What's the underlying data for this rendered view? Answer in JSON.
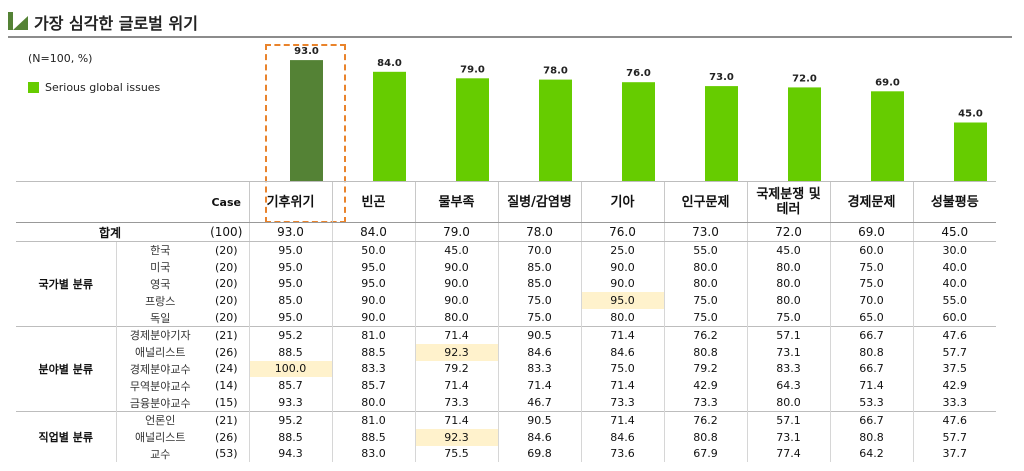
{
  "title": "가장 심각한 글로벌 위기",
  "note": "(N=100, %)",
  "colors": {
    "bar": "#66cc00",
    "highlight_bar": "#548235",
    "highlight_border": "#e9832b",
    "highlight_cell": "#fff2cc"
  },
  "chart_data": {
    "type": "bar",
    "categories": [
      "기후위기",
      "빈곤",
      "물부족",
      "질병/감염병",
      "기아",
      "인구문제",
      "국제분쟁 및 테러",
      "경제문제",
      "성불평등"
    ],
    "series": [
      {
        "name": "Serious global issues",
        "values": [
          93.0,
          84.0,
          79.0,
          78.0,
          76.0,
          73.0,
          72.0,
          69.0,
          45.0
        ]
      }
    ],
    "value_labels": [
      "93.0",
      "84.0",
      "79.0",
      "78.0",
      "76.0",
      "73.0",
      "72.0",
      "69.0",
      "45.0"
    ],
    "highlighted_category": "기후위기",
    "ylim": [
      0,
      100
    ]
  },
  "table": {
    "case_header": "Case",
    "issue_headers": [
      "기후위기",
      "빈곤",
      "물부족",
      "질병/감염병",
      "기아",
      "인구문제",
      "국제분쟁 및\n테러",
      "경제문제",
      "성불평등"
    ],
    "total": {
      "label": "합계",
      "case": "(100)",
      "values": [
        "93.0",
        "84.0",
        "79.0",
        "78.0",
        "76.0",
        "73.0",
        "72.0",
        "69.0",
        "45.0"
      ]
    },
    "groups": [
      {
        "label": "국가별 분류",
        "rows": [
          {
            "label": "한국",
            "case": "(20)",
            "values": [
              "95.0",
              "50.0",
              "45.0",
              "70.0",
              "25.0",
              "55.0",
              "45.0",
              "60.0",
              "30.0"
            ]
          },
          {
            "label": "미국",
            "case": "(20)",
            "values": [
              "95.0",
              "95.0",
              "90.0",
              "85.0",
              "90.0",
              "80.0",
              "80.0",
              "75.0",
              "40.0"
            ]
          },
          {
            "label": "영국",
            "case": "(20)",
            "values": [
              "95.0",
              "95.0",
              "90.0",
              "85.0",
              "90.0",
              "80.0",
              "80.0",
              "75.0",
              "40.0"
            ]
          },
          {
            "label": "프랑스",
            "case": "(20)",
            "values": [
              "85.0",
              "90.0",
              "90.0",
              "75.0",
              "95.0",
              "75.0",
              "80.0",
              "70.0",
              "55.0"
            ],
            "highlight_index": 4
          },
          {
            "label": "독일",
            "case": "(20)",
            "values": [
              "95.0",
              "90.0",
              "80.0",
              "75.0",
              "80.0",
              "75.0",
              "75.0",
              "65.0",
              "60.0"
            ]
          }
        ]
      },
      {
        "label": "분야별 분류",
        "rows": [
          {
            "label": "경제분야기자",
            "case": "(21)",
            "values": [
              "95.2",
              "81.0",
              "71.4",
              "90.5",
              "71.4",
              "76.2",
              "57.1",
              "66.7",
              "47.6"
            ]
          },
          {
            "label": "애널리스트",
            "case": "(26)",
            "values": [
              "88.5",
              "88.5",
              "92.3",
              "84.6",
              "84.6",
              "80.8",
              "73.1",
              "80.8",
              "57.7"
            ],
            "highlight_index": 2
          },
          {
            "label": "경제분야교수",
            "case": "(24)",
            "values": [
              "100.0",
              "83.3",
              "79.2",
              "83.3",
              "75.0",
              "79.2",
              "83.3",
              "66.7",
              "37.5"
            ],
            "highlight_index": 0
          },
          {
            "label": "무역분야교수",
            "case": "(14)",
            "values": [
              "85.7",
              "85.7",
              "71.4",
              "71.4",
              "71.4",
              "42.9",
              "64.3",
              "71.4",
              "42.9"
            ]
          },
          {
            "label": "금융분야교수",
            "case": "(15)",
            "values": [
              "93.3",
              "80.0",
              "73.3",
              "46.7",
              "73.3",
              "73.3",
              "80.0",
              "53.3",
              "33.3"
            ]
          }
        ]
      },
      {
        "label": "직업별 분류",
        "rows": [
          {
            "label": "언론인",
            "case": "(21)",
            "values": [
              "95.2",
              "81.0",
              "71.4",
              "90.5",
              "71.4",
              "76.2",
              "57.1",
              "66.7",
              "47.6"
            ]
          },
          {
            "label": "애널리스트",
            "case": "(26)",
            "values": [
              "88.5",
              "88.5",
              "92.3",
              "84.6",
              "84.6",
              "80.8",
              "73.1",
              "80.8",
              "57.7"
            ],
            "highlight_index": 2
          },
          {
            "label": "교수",
            "case": "(53)",
            "values": [
              "94.3",
              "83.0",
              "75.5",
              "69.8",
              "73.6",
              "67.9",
              "77.4",
              "64.2",
              "37.7"
            ]
          }
        ]
      }
    ]
  }
}
